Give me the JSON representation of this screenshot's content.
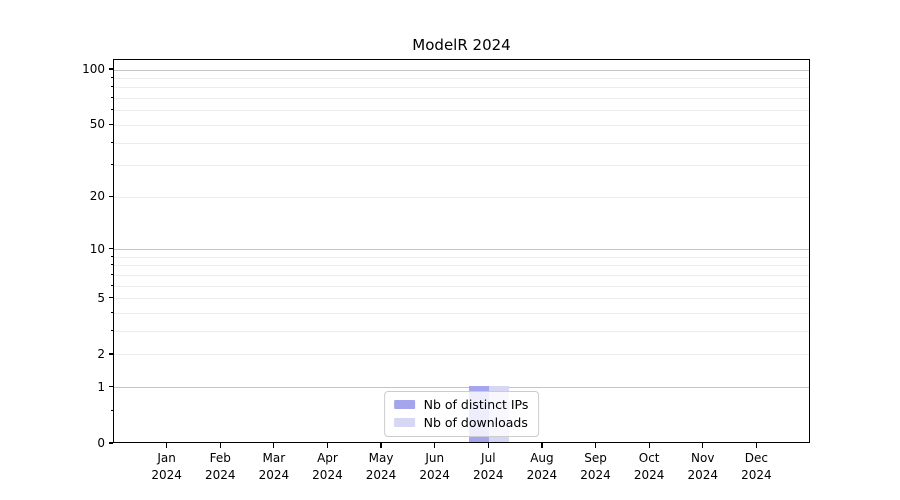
{
  "chart_data": {
    "type": "bar",
    "title": "ModelR 2024",
    "categories": [
      "Jan 2024",
      "Feb 2024",
      "Mar 2024",
      "Apr 2024",
      "May 2024",
      "Jun 2024",
      "Jul 2024",
      "Aug 2024",
      "Sep 2024",
      "Oct 2024",
      "Nov 2024",
      "Dec 2024"
    ],
    "series": [
      {
        "name": "Nb of distinct IPs",
        "color": "#a5a5ee",
        "values": [
          0,
          0,
          0,
          0,
          0,
          0,
          1,
          0,
          0,
          0,
          0,
          0
        ]
      },
      {
        "name": "Nb of downloads",
        "color": "#d6d6f5",
        "values": [
          0,
          0,
          0,
          0,
          0,
          0,
          1,
          0,
          0,
          0,
          0,
          0
        ]
      }
    ],
    "xlabel": "",
    "ylabel": "",
    "y_scale": "symlog",
    "ylim": [
      0,
      113
    ],
    "y_ticks_labeled": [
      0,
      1,
      2,
      5,
      10,
      20,
      50,
      100
    ],
    "y_ticks_minor": [
      0.5,
      3,
      4,
      6,
      7,
      8,
      9,
      30,
      40,
      60,
      70,
      80,
      90
    ],
    "y_gridlines_major": [
      1,
      10,
      100
    ],
    "y_gridlines_minor": [
      2,
      3,
      4,
      5,
      6,
      7,
      8,
      9,
      20,
      30,
      40,
      50,
      60,
      70,
      80,
      90
    ],
    "grid": "horizontal",
    "legend_position": "lower center"
  }
}
